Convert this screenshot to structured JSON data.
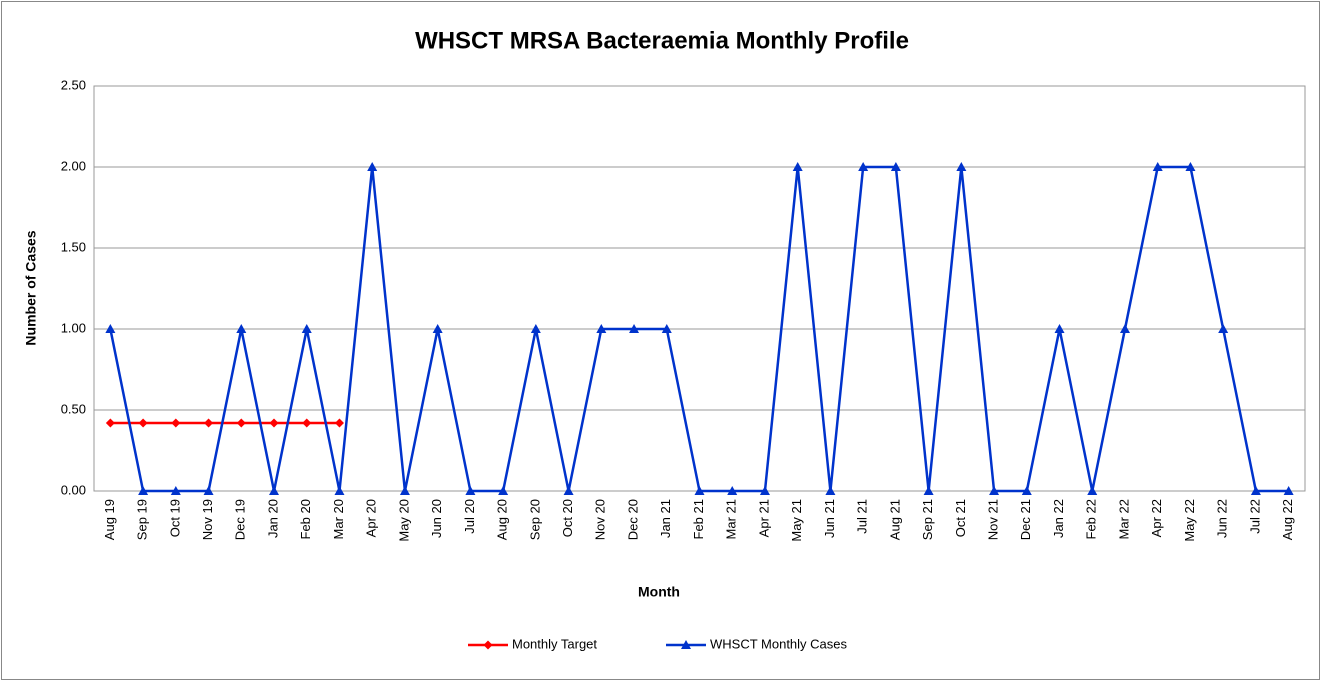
{
  "chart_data": {
    "type": "line",
    "title": "WHSCT MRSA Bacteraemia Monthly Profile",
    "x_label": "Month",
    "y_label": "Number of Cases",
    "categories": [
      "Aug 19",
      "Sep 19",
      "Oct 19",
      "Nov 19",
      "Dec 19",
      "Jan 20",
      "Feb 20",
      "Mar 20",
      "Apr 20",
      "May 20",
      "Jun 20",
      "Jul 20",
      "Aug 20",
      "Sep 20",
      "Oct 20",
      "Nov 20",
      "Dec 20",
      "Jan 21",
      "Feb 21",
      "Mar 21",
      "Apr 21",
      "May 21",
      "Jun 21",
      "Jul 21",
      "Aug 21",
      "Sep 21",
      "Oct 21",
      "Nov 21",
      "Dec 21",
      "Jan 22",
      "Feb 22",
      "Mar 22",
      "Apr 22",
      "May 22",
      "Jun 22",
      "Jul 22",
      "Aug 22"
    ],
    "series": [
      {
        "name": "Monthly Target",
        "color": "#ff0000",
        "marker": "diamond",
        "values": [
          0.42,
          0.42,
          0.42,
          0.42,
          0.42,
          0.42,
          0.42,
          0.42,
          null,
          null,
          null,
          null,
          null,
          null,
          null,
          null,
          null,
          null,
          null,
          null,
          null,
          null,
          null,
          null,
          null,
          null,
          null,
          null,
          null,
          null,
          null,
          null,
          null,
          null,
          null,
          null,
          null
        ]
      },
      {
        "name": "WHSCT Monthly Cases",
        "color": "#0033cc",
        "marker": "triangle",
        "values": [
          1,
          0,
          0,
          0,
          1,
          0,
          1,
          0,
          2,
          0,
          1,
          0,
          0,
          1,
          0,
          1,
          1,
          1,
          0,
          0,
          0,
          2,
          0,
          2,
          2,
          0,
          2,
          0,
          0,
          1,
          0,
          1,
          2,
          2,
          1,
          0,
          0
        ]
      }
    ],
    "ylim": [
      0,
      2.5
    ],
    "yticks": [
      {
        "value": 0,
        "label": "0.00"
      },
      {
        "value": 0.5,
        "label": "0.50"
      },
      {
        "value": 1,
        "label": "1.00"
      },
      {
        "value": 1.5,
        "label": "1.50"
      },
      {
        "value": 2,
        "label": "2.00"
      },
      {
        "value": 2.5,
        "label": "2.50"
      }
    ],
    "grid": true,
    "legend": "bottom"
  }
}
